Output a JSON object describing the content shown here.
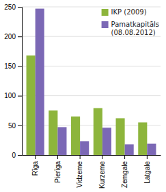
{
  "chart_data": {
    "type": "bar",
    "categories": [
      "Rīga",
      "Pierīga",
      "Vidzeme",
      "Kurzeme",
      "Zemgale",
      "Latgale"
    ],
    "series": [
      {
        "name": "IKP (2009)",
        "color": "#8db53c",
        "values": [
          168,
          75,
          65,
          79,
          62,
          55
        ]
      },
      {
        "name": "Pamatkapitāls\n(08.08.2012)",
        "color": "#7b68b5",
        "values": [
          247,
          47,
          23,
          46,
          18,
          19
        ]
      }
    ],
    "ylim": [
      0,
      250
    ],
    "yticks": [
      0,
      50,
      100,
      150,
      200,
      250
    ],
    "grid": true,
    "legend": "upper right"
  }
}
